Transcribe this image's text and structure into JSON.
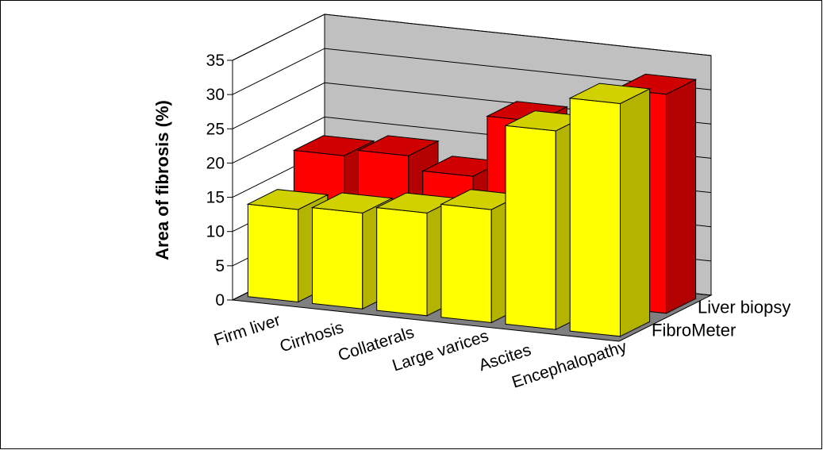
{
  "chart_data": {
    "type": "bar",
    "style": "3d-clustered-depth",
    "title": "",
    "xlabel": "",
    "ylabel": "Area of fibrosis (%)",
    "ylim": [
      0,
      35
    ],
    "yticks": [
      0,
      5,
      10,
      15,
      20,
      25,
      30,
      35
    ],
    "grid": true,
    "categories": [
      "Firm liver",
      "Cirrhosis",
      "Collaterals",
      "Large varices",
      "Ascites",
      "Encephalopathy"
    ],
    "series": [
      {
        "name": "FibroMeter",
        "color": "#ffff00",
        "values": [
          13.5,
          14,
          15,
          16.5,
          29,
          34
        ]
      },
      {
        "name": "Liver biopsy",
        "color": "#ff0000",
        "values": [
          18,
          19,
          17,
          26,
          19,
          32
        ]
      }
    ],
    "colors": {
      "back_wall": "#c0c0c0",
      "floor": "#808080",
      "grid": "#000000"
    }
  }
}
